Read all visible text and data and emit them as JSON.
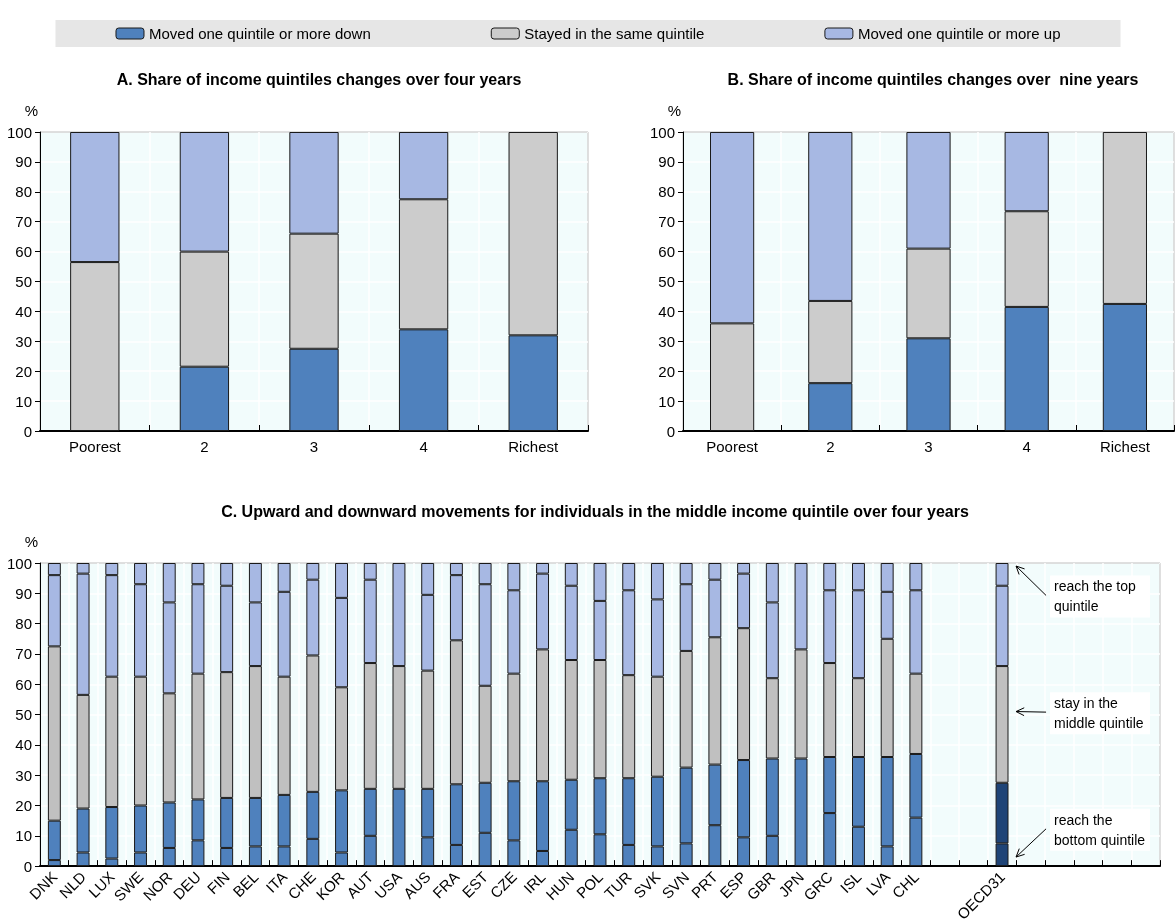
{
  "chart_data": [
    {
      "type": "bar",
      "title": "A. Share of income quintiles changes over four years",
      "ylabel": "%",
      "categories": [
        "Poorest",
        "2",
        "3",
        "4",
        "Richest"
      ],
      "stacked": true,
      "legend": "top",
      "grid": true,
      "ylim": [
        0,
        100
      ],
      "yticks": [
        0,
        10,
        20,
        30,
        40,
        50,
        60,
        70,
        80,
        90,
        100
      ],
      "series": [
        {
          "name": "Moved one quintile or more down",
          "color": "#4f81bd",
          "values": [
            0,
            21.5,
            27.5,
            34,
            32
          ]
        },
        {
          "name": "Stayed in the same quintile",
          "color": "#cccccc",
          "values": [
            56.5,
            38.5,
            38.5,
            43.5,
            68
          ]
        },
        {
          "name": "Moved one quintile or more up",
          "color": "#a7b8e3",
          "values": [
            43.5,
            40,
            34,
            22.5,
            0
          ]
        }
      ]
    },
    {
      "type": "bar",
      "title": "B. Share of income quintiles changes over  nine years",
      "ylabel": "%",
      "categories": [
        "Poorest",
        "2",
        "3",
        "4",
        "Richest"
      ],
      "stacked": true,
      "grid": true,
      "ylim": [
        0,
        100
      ],
      "yticks": [
        0,
        10,
        20,
        30,
        40,
        50,
        60,
        70,
        80,
        90,
        100
      ],
      "series": [
        {
          "color": "#4f81bd",
          "values": [
            0,
            16,
            31,
            41.5,
            42.5
          ]
        },
        {
          "color": "#cccccc",
          "values": [
            36,
            27.5,
            30,
            32,
            57.5
          ]
        },
        {
          "color": "#a7b8e3",
          "values": [
            64,
            56.5,
            39,
            26.5,
            0
          ]
        }
      ]
    },
    {
      "type": "bar",
      "title": "C. Upward and downward movements for individuals in the middle income quintile over four years",
      "ylabel": "%",
      "categories": [
        "DNK",
        "NLD",
        "LUX",
        "SWE",
        "NOR",
        "DEU",
        "FIN",
        "BEL",
        "ITA",
        "CHE",
        "KOR",
        "AUT",
        "USA",
        "AUS",
        "FRA",
        "EST",
        "CZE",
        "IRL",
        "HUN",
        "POL",
        "TUR",
        "SVK",
        "SVN",
        "PRT",
        "ESP",
        "GBR",
        "JPN",
        "GRC",
        "ISL",
        "LVA",
        "CHL",
        null,
        null,
        "OECD31",
        null,
        null,
        null,
        null,
        null
      ],
      "stacked": true,
      "grid": true,
      "ylim": [
        0,
        100
      ],
      "yticks": [
        0,
        10,
        20,
        30,
        40,
        50,
        60,
        70,
        80,
        90,
        100
      ],
      "series": [
        {
          "color": "#4f81bd",
          "colors": [
            "#4f81bd",
            "#4f81bd",
            "#4f81bd",
            "#4f81bd",
            "#4f81bd",
            "#4f81bd",
            "#4f81bd",
            "#4f81bd",
            "#4f81bd",
            "#4f81bd",
            "#4f81bd",
            "#4f81bd",
            "#4f81bd",
            "#4f81bd",
            "#4f81bd",
            "#4f81bd",
            "#4f81bd",
            "#4f81bd",
            "#4f81bd",
            "#4f81bd",
            "#4f81bd",
            "#4f81bd",
            "#4f81bd",
            "#4f81bd",
            "#4f81bd",
            "#4f81bd",
            "#4f81bd",
            "#4f81bd",
            "#4f81bd",
            "#4f81bd",
            "#4f81bd",
            "#4f81bd",
            "#4f81bd",
            "#1f4477",
            "#4f81bd",
            "#4f81bd",
            "#4f81bd",
            "#4f81bd",
            "#4f81bd"
          ],
          "values": [
            2,
            4.5,
            2.5,
            4.5,
            6,
            8.5,
            6,
            6.5,
            6.5,
            9,
            4.5,
            10,
            null,
            9.5,
            7,
            11,
            8.5,
            5,
            12,
            10.5,
            7,
            6.5,
            7.5,
            13.5,
            9.5,
            10,
            null,
            17.5,
            13,
            6.5,
            16,
            null,
            null,
            7.5,
            null,
            null,
            null,
            null,
            null
          ]
        },
        {
          "color": "#4f81bd",
          "colors": [
            "#4f81bd",
            "#4f81bd",
            "#4f81bd",
            "#4f81bd",
            "#4f81bd",
            "#4f81bd",
            "#4f81bd",
            "#4f81bd",
            "#4f81bd",
            "#4f81bd",
            "#4f81bd",
            "#4f81bd",
            "#4f81bd",
            "#4f81bd",
            "#4f81bd",
            "#4f81bd",
            "#4f81bd",
            "#4f81bd",
            "#4f81bd",
            "#4f81bd",
            "#4f81bd",
            "#4f81bd",
            "#4f81bd",
            "#4f81bd",
            "#4f81bd",
            "#4f81bd",
            "#4f81bd",
            "#4f81bd",
            "#4f81bd",
            "#4f81bd",
            "#4f81bd",
            "#4f81bd",
            "#4f81bd",
            "#1f4477",
            "#4f81bd",
            "#4f81bd",
            "#4f81bd",
            "#4f81bd",
            "#4f81bd"
          ],
          "values": [
            13,
            14.5,
            17,
            15.5,
            15,
            13.5,
            16.5,
            16,
            17,
            15.5,
            20.5,
            15.5,
            25.5,
            16,
            20,
            16.5,
            19.5,
            23,
            16.5,
            18.5,
            22,
            23,
            25,
            20,
            25.5,
            25.5,
            35.5,
            18.5,
            23,
            29.5,
            21,
            null,
            null,
            20,
            null,
            null,
            null,
            null,
            null
          ]
        },
        {
          "color": "#c0c0c0",
          "values": [
            57.5,
            37.5,
            43,
            42.5,
            36,
            41.5,
            41.5,
            43.5,
            39,
            45,
            34,
            41.5,
            40.5,
            39,
            47.5,
            32,
            35.5,
            43.5,
            39.5,
            39,
            34,
            33,
            38.5,
            42,
            43.5,
            26.5,
            36,
            31,
            26,
            39,
            26.5,
            null,
            null,
            38.5,
            null,
            null,
            null,
            null,
            null
          ]
        },
        {
          "color": "#a7b8e3",
          "values": [
            23.5,
            40,
            33.5,
            30.5,
            30,
            29.5,
            28.5,
            21,
            28,
            25,
            29.5,
            27.5,
            34,
            25,
            21.5,
            33.5,
            27.5,
            25,
            24.5,
            19.5,
            28,
            25.5,
            22,
            19,
            18,
            25,
            28.5,
            24,
            29,
            15.5,
            27.5,
            null,
            null,
            26.5,
            null,
            null,
            null,
            null,
            null
          ]
        },
        {
          "color": "#a7b8e3",
          "values": [
            4,
            3.5,
            4,
            7,
            13,
            7,
            7.5,
            13,
            9.5,
            5.5,
            11.5,
            5.5,
            null,
            10.5,
            4,
            7,
            9,
            3.5,
            7.5,
            12.5,
            9,
            12,
            7,
            5.5,
            3.5,
            13,
            null,
            9,
            9,
            9.5,
            9,
            null,
            null,
            7.5,
            null,
            null,
            null,
            null,
            null
          ]
        }
      ],
      "annotations": [
        "reach the top quintile",
        "stay in the middle quintile",
        "reach the bottom quintile"
      ]
    }
  ]
}
